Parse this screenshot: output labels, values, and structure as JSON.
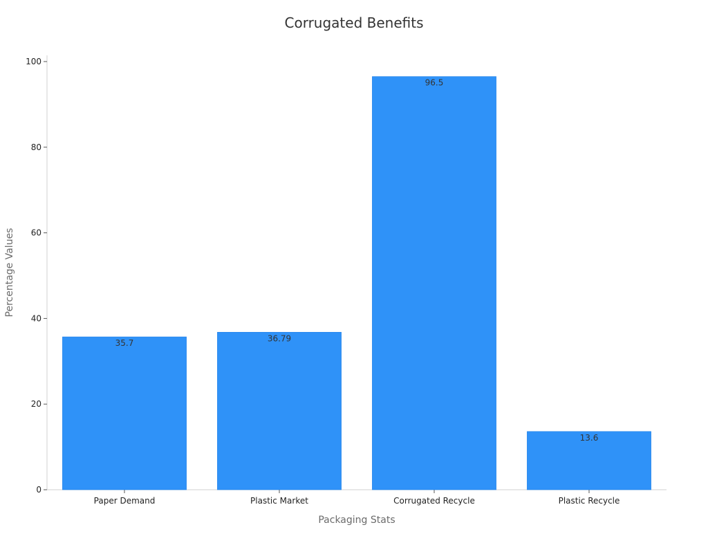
{
  "chart_data": {
    "type": "bar",
    "title": "Corrugated Benefits",
    "xlabel": "Packaging Stats",
    "ylabel": "Percentage Values",
    "categories": [
      "Paper Demand",
      "Plastic Market",
      "Corrugated Recycle",
      "Plastic Recycle"
    ],
    "values": [
      35.7,
      36.79,
      96.5,
      13.6
    ],
    "value_labels": [
      "35.7",
      "36.79",
      "96.5",
      "13.6"
    ],
    "ylim": [
      0,
      100
    ],
    "yticks": [
      0,
      20,
      40,
      60,
      80,
      100
    ],
    "grid": false,
    "legend": "none",
    "bar_color": "#2f92f8",
    "bar_edge_color": "#1e7fe6"
  }
}
